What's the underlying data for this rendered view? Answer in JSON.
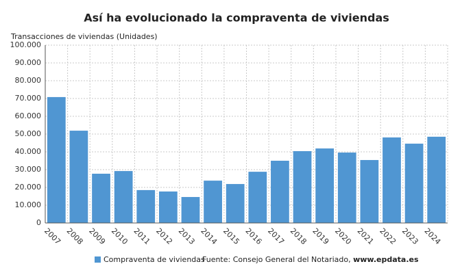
{
  "chart_data": {
    "type": "bar",
    "title": "Así ha evolucionado la compraventa de viviendas",
    "y_label": "Transacciones de viviendas (Unidades)",
    "categories": [
      "2007",
      "2008",
      "2009",
      "2010",
      "2011",
      "2012",
      "2013",
      "2014",
      "2015",
      "2016",
      "2017",
      "2018",
      "2019",
      "2020",
      "2021",
      "2022",
      "2023",
      "2024"
    ],
    "series": [
      {
        "name": "Compraventa de viviendas",
        "color": "#5096d2",
        "values": [
          70800,
          51900,
          27700,
          29200,
          18500,
          17700,
          14600,
          23800,
          21900,
          28800,
          35000,
          40400,
          41900,
          39600,
          35400,
          48100,
          44600,
          48500
        ]
      }
    ],
    "ylim": [
      0,
      100000
    ],
    "yticks": [
      0,
      {
        "value": 10000,
        "label": "10.000"
      },
      {
        "value": 20000,
        "label": "20.000"
      },
      {
        "value": 30000,
        "label": "30.000"
      },
      {
        "value": 40000,
        "label": "40.000"
      },
      {
        "value": 50000,
        "label": "50.000"
      },
      {
        "value": 60000,
        "label": "60.000"
      },
      {
        "value": 70000,
        "label": "70.000"
      },
      {
        "value": 80000,
        "label": "80.000"
      },
      {
        "value": 90000,
        "label": "90.000"
      },
      {
        "value": 100000,
        "label": "100.000"
      }
    ],
    "grid": true,
    "source": "Fuente: Consejo General del Notariado,",
    "source_link": "www.epdata.es"
  }
}
